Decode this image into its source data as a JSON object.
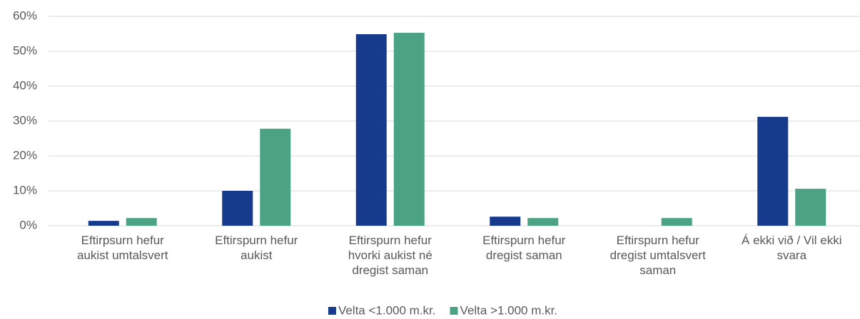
{
  "chart_data": {
    "type": "bar",
    "categories": [
      "Eftirpsurn hefur\naukist umtalsvert",
      "Eftirspurn hefur\naukist",
      "Eftirspurn hefur\nhvorki aukist né\ndregist saman",
      "Eftirspurn hefur\ndregist saman",
      "Eftirspurn hefur\ndregist umtalsvert\nsaman",
      "Á ekki við / Vil ekki\nsvara"
    ],
    "series": [
      {
        "name": "Velta <1.000 m.kr.",
        "color": "#163a8c",
        "values": [
          1.4,
          10.0,
          54.9,
          2.6,
          0,
          31.2
        ]
      },
      {
        "name": "Velta >1.000 m.kr.",
        "color": "#4ba383",
        "values": [
          2.2,
          27.8,
          55.3,
          2.2,
          2.2,
          10.6
        ]
      }
    ],
    "ylim": [
      0,
      60
    ],
    "yticks": [
      {
        "value": 0,
        "label": "0%"
      },
      {
        "value": 10,
        "label": "10%"
      },
      {
        "value": 20,
        "label": "20%"
      },
      {
        "value": 30,
        "label": "30%"
      },
      {
        "value": 40,
        "label": "40%"
      },
      {
        "value": 50,
        "label": "50%"
      },
      {
        "value": 60,
        "label": "60%"
      }
    ],
    "grid": true,
    "legend": "bottom"
  }
}
